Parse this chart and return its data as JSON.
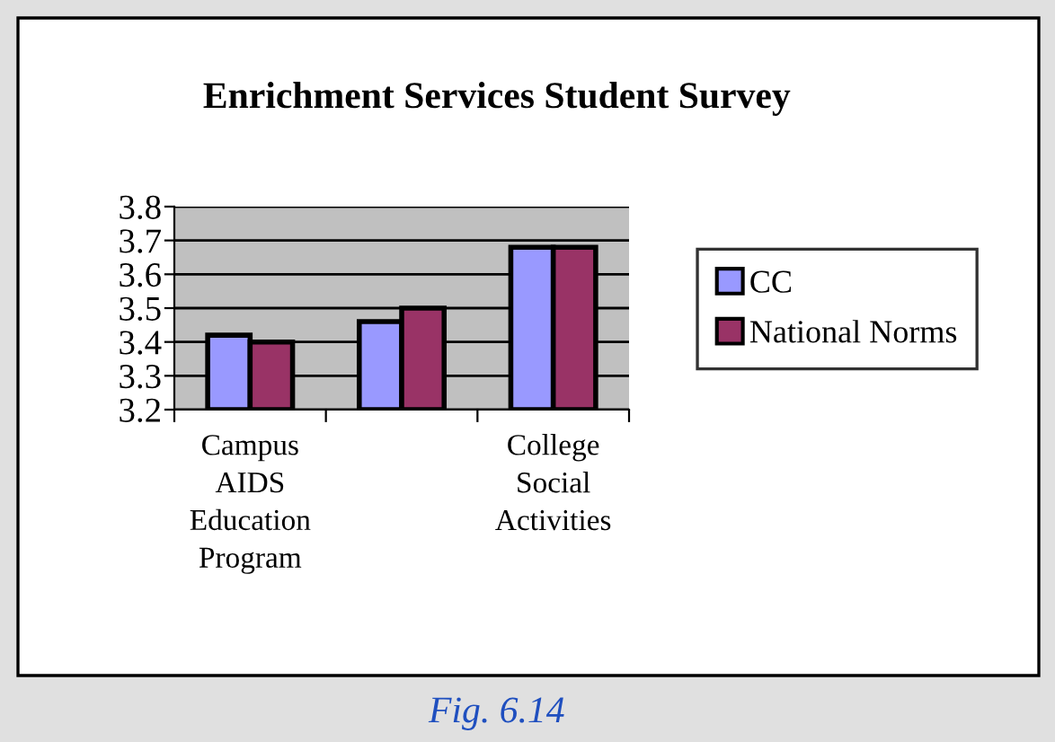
{
  "chart_data": {
    "type": "bar",
    "title": "Enrichment Services Student Survey",
    "categories": [
      "Campus\nAIDS\nEducation\nProgram",
      null,
      "College\nSocial\nActivities"
    ],
    "series": [
      {
        "name": "CC",
        "color": "#9999ff",
        "values": [
          3.42,
          3.46,
          3.68
        ]
      },
      {
        "name": "National Norms",
        "color": "#993366",
        "values": [
          3.4,
          3.5,
          3.68
        ]
      }
    ],
    "ylim": [
      3.2,
      3.8
    ],
    "yticks": [
      3.2,
      3.3,
      3.4,
      3.5,
      3.6,
      3.7,
      3.8
    ],
    "grid": "y",
    "legend": "right",
    "annotations": [
      "Fig. 6.14"
    ]
  }
}
